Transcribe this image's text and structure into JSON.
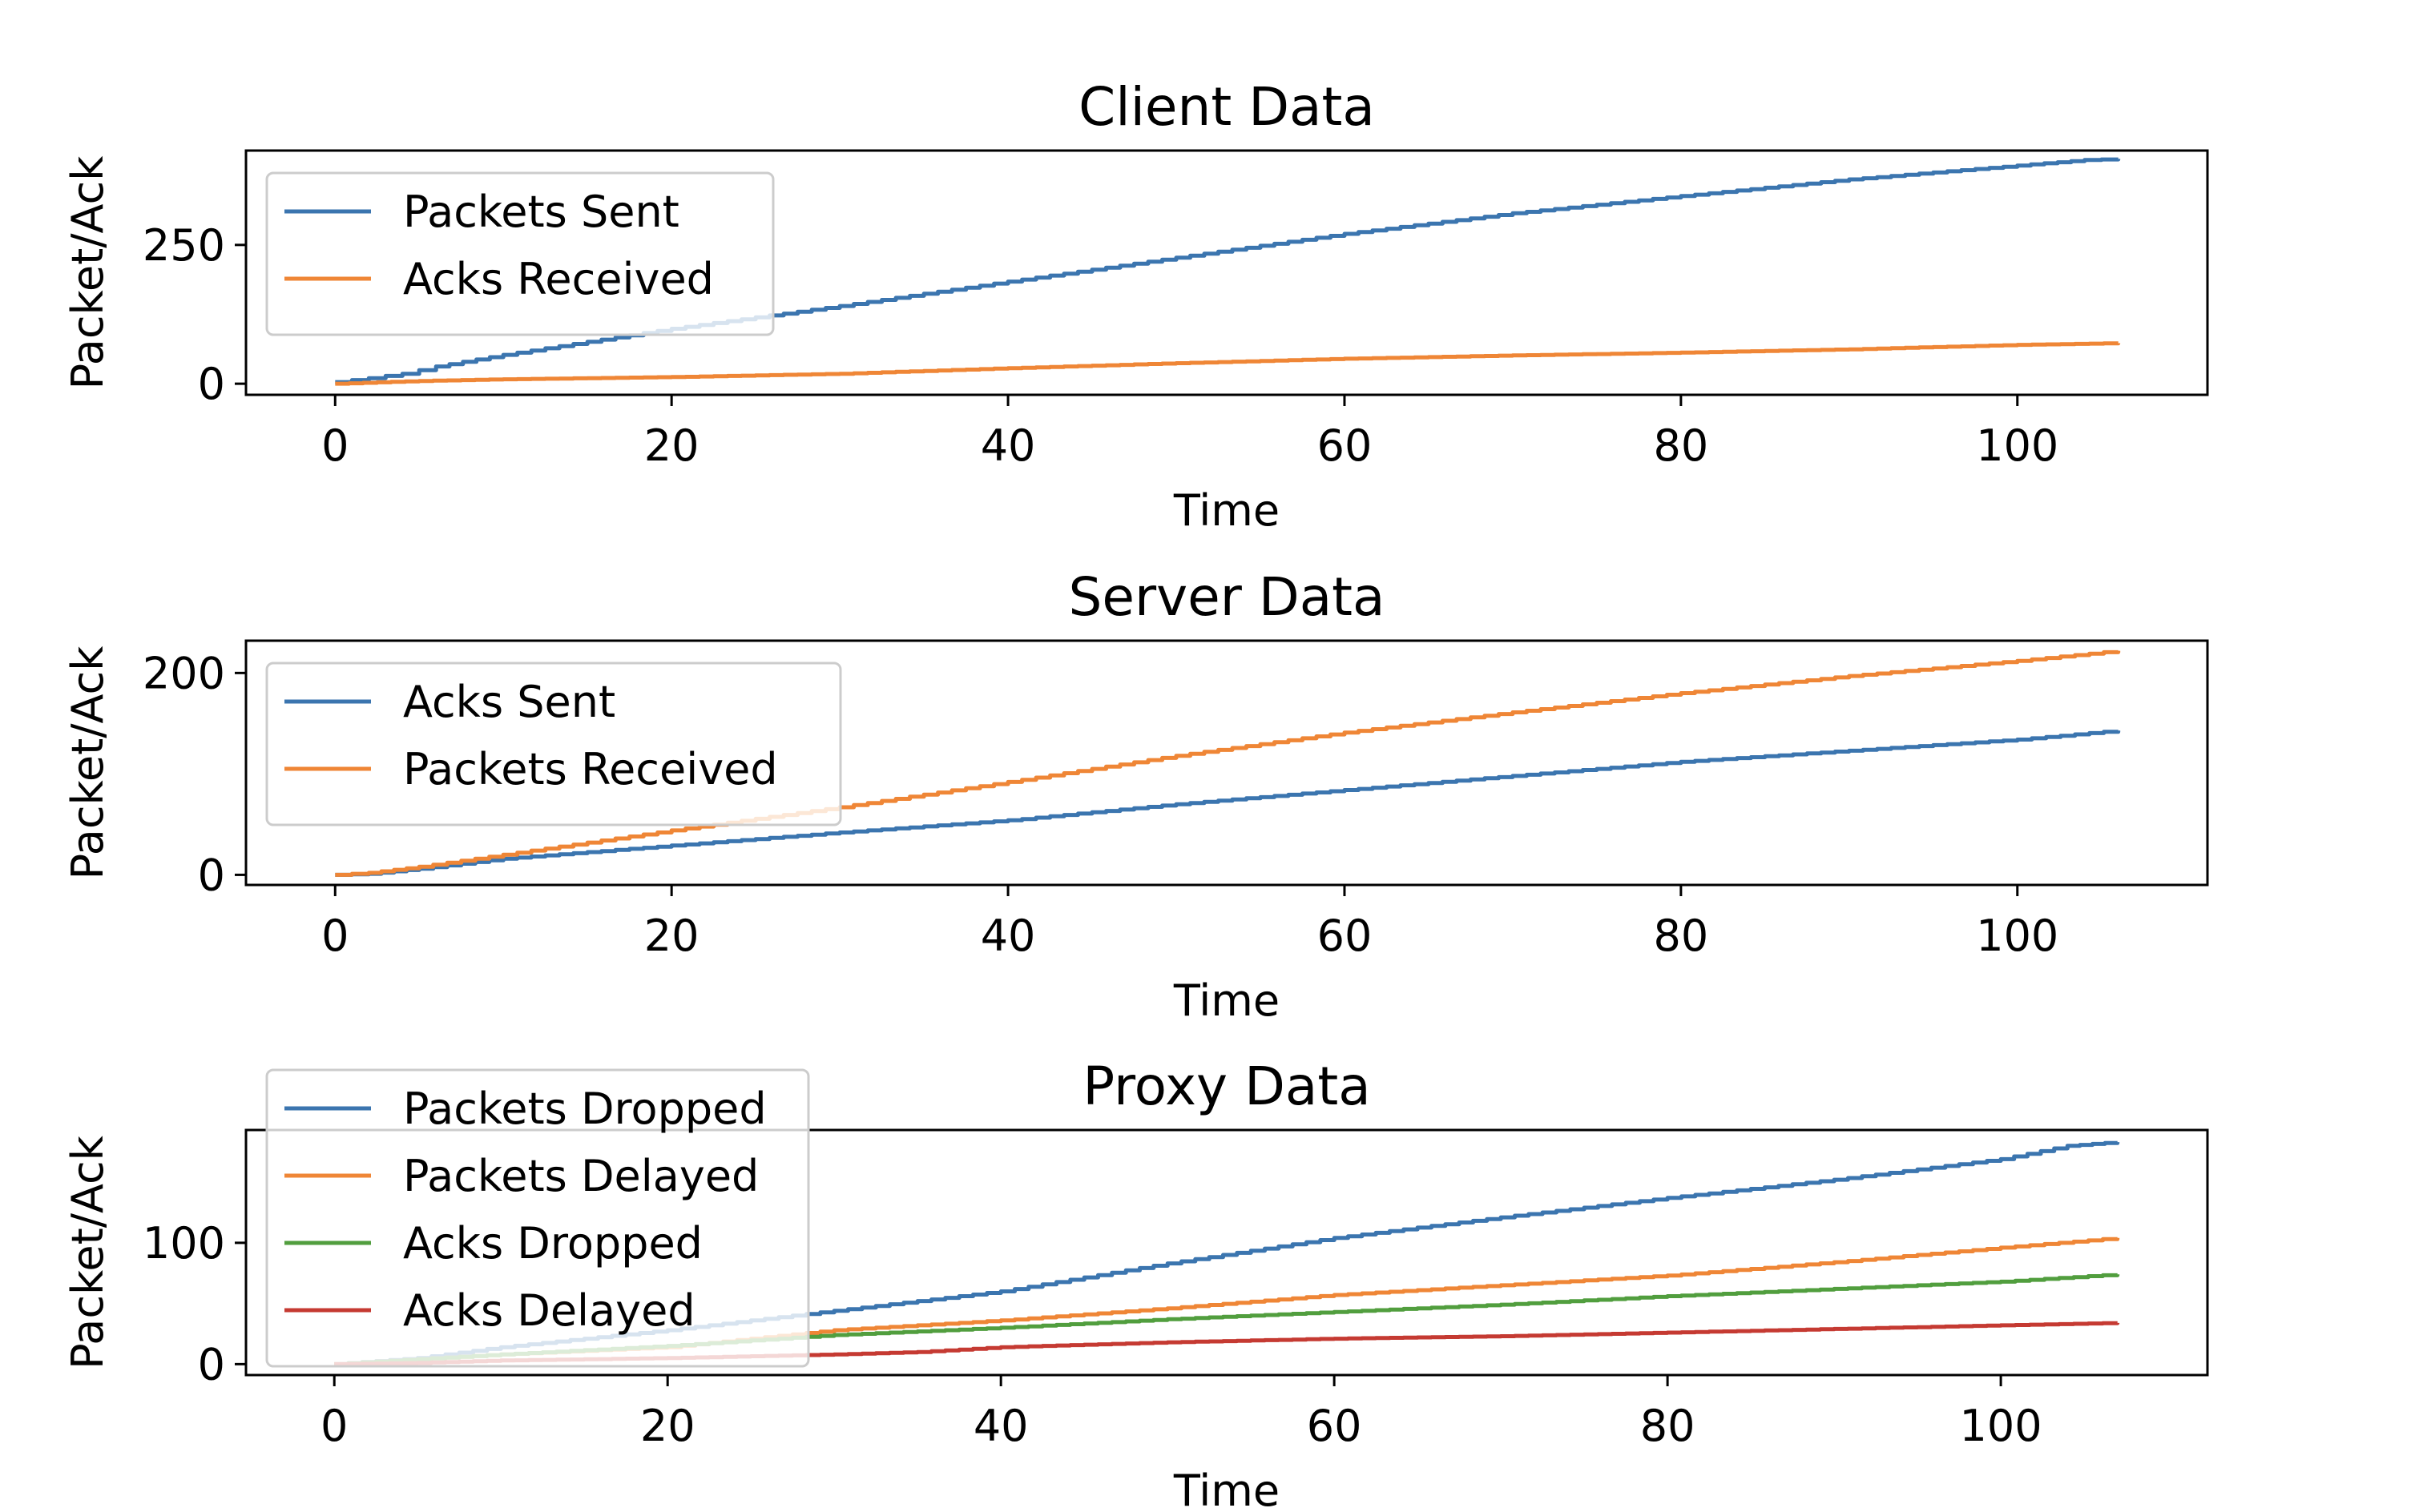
{
  "chart_data": [
    {
      "type": "line",
      "title": "Client Data",
      "xlabel": "Time",
      "ylabel": "Packet/Ack",
      "xlim": [
        -5.3,
        111.3
      ],
      "ylim": [
        -20,
        420
      ],
      "xticks": [
        0,
        20,
        40,
        60,
        80,
        100
      ],
      "yticks": [
        0,
        250
      ],
      "grid": false,
      "legend_position": "upper left",
      "series": [
        {
          "name": "Packets Sent",
          "color": "#3b75af",
          "x": [
            0,
            2,
            4,
            6,
            10,
            20,
            30,
            40,
            50,
            60,
            70,
            80,
            90,
            100,
            104,
            106
          ],
          "y": [
            3,
            10,
            18,
            31,
            52,
            99,
            140,
            184,
            227,
            270,
            307,
            338,
            368,
            393,
            403,
            405
          ]
        },
        {
          "name": "Acks Received",
          "color": "#ef8636",
          "x": [
            0,
            5,
            10,
            20,
            30,
            40,
            50,
            60,
            70,
            80,
            90,
            100,
            106
          ],
          "y": [
            0,
            5,
            8,
            12,
            18,
            28,
            37,
            45,
            51,
            56,
            62,
            70,
            73
          ]
        }
      ]
    },
    {
      "type": "line",
      "title": "Server Data",
      "xlabel": "Time",
      "ylabel": "Packet/Ack",
      "xlim": [
        -5.3,
        111.3
      ],
      "ylim": [
        -10,
        232
      ],
      "xticks": [
        0,
        20,
        40,
        60,
        80,
        100
      ],
      "yticks": [
        0,
        200
      ],
      "grid": false,
      "legend_position": "upper left",
      "series": [
        {
          "name": "Acks Sent",
          "color": "#3b75af",
          "x": [
            0,
            2,
            5,
            10,
            20,
            30,
            40,
            50,
            60,
            70,
            80,
            90,
            100,
            106
          ],
          "y": [
            0,
            1,
            6,
            16,
            29,
            42,
            54,
            70,
            84,
            98,
            112,
            123,
            134,
            143
          ]
        },
        {
          "name": "Packets Received",
          "color": "#ef8636",
          "x": [
            0,
            2,
            5,
            10,
            20,
            30,
            40,
            50,
            60,
            70,
            80,
            90,
            100,
            106
          ],
          "y": [
            0,
            2,
            8,
            20,
            44,
            67,
            92,
            118,
            141,
            161,
            180,
            197,
            212,
            222
          ]
        }
      ]
    },
    {
      "type": "line",
      "title": "Proxy Data",
      "xlabel": "Time",
      "ylabel": "Packet/Ack",
      "xlim": [
        -5.3,
        112.4
      ],
      "ylim": [
        -9,
        193
      ],
      "xticks": [
        0,
        20,
        40,
        60,
        80,
        100
      ],
      "yticks": [
        0,
        100
      ],
      "grid": false,
      "legend_position": "upper left",
      "series": [
        {
          "name": "Packets Dropped",
          "color": "#3b75af",
          "x": [
            0,
            5,
            10,
            20,
            30,
            40,
            50,
            60,
            70,
            80,
            90,
            100,
            104,
            107
          ],
          "y": [
            0,
            5,
            14,
            28,
            44,
            60,
            83,
            104,
            121,
            137,
            152,
            169,
            180,
            183
          ]
        },
        {
          "name": "Packets Delayed",
          "color": "#ef8636",
          "x": [
            0,
            5,
            10,
            20,
            30,
            40,
            50,
            60,
            70,
            80,
            90,
            100,
            107
          ],
          "y": [
            0,
            4,
            8,
            14,
            28,
            36,
            46,
            57,
            65,
            73,
            84,
            96,
            104
          ]
        },
        {
          "name": "Acks Dropped",
          "color": "#519e3e",
          "x": [
            0,
            5,
            10,
            20,
            30,
            40,
            50,
            60,
            70,
            80,
            90,
            100,
            107
          ],
          "y": [
            0,
            4,
            8,
            15,
            24,
            30,
            37,
            43,
            49,
            56,
            62,
            68,
            74
          ]
        },
        {
          "name": "Acks Delayed",
          "color": "#c53a32",
          "x": [
            0,
            5,
            10,
            20,
            30,
            35,
            40,
            50,
            60,
            70,
            80,
            90,
            100,
            107
          ],
          "y": [
            0,
            1,
            3,
            5,
            8,
            10,
            14,
            18,
            21,
            23,
            26,
            29,
            32,
            34
          ]
        }
      ]
    }
  ]
}
